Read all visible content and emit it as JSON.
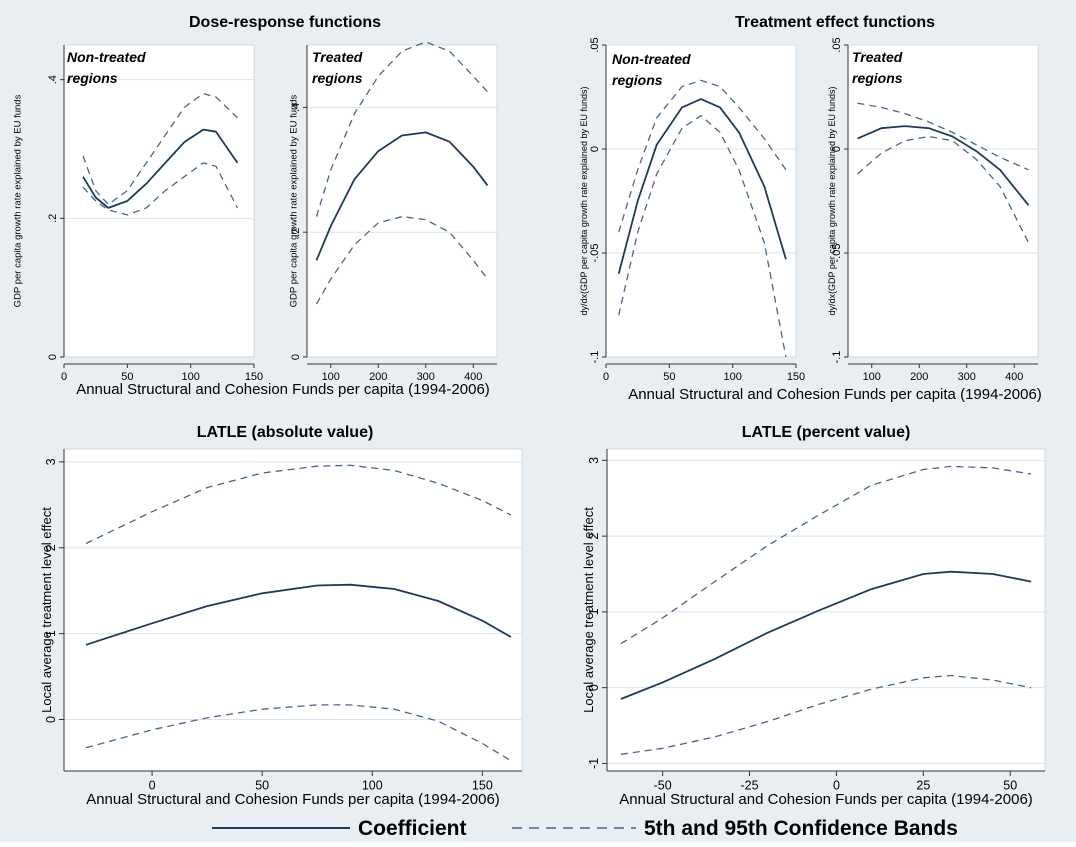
{
  "figure": {
    "legend": {
      "coefficient": "Coefficient",
      "bands": "5th and 95th Confidence Bands"
    },
    "colors": {
      "background": "#e9eef3",
      "plot": "#ffffff",
      "line": "#1e3a5f",
      "dash": "#48668c",
      "grid": "#dde2e8"
    }
  },
  "chart_data": [
    {
      "type": "line",
      "group_title": "Dose-response functions",
      "panel_label": "Non-treated regions",
      "ylabel": "GDP per capita growth rate explained by EU funds",
      "xlabel": "",
      "xlim": [
        0,
        150
      ],
      "ylim": [
        0,
        0.45
      ],
      "xticks": [
        "0",
        "50",
        "100",
        "150"
      ],
      "xtick_values": [
        0,
        50,
        100,
        150
      ],
      "yticks": [
        "0",
        ".2",
        ".4"
      ],
      "ytick_values": [
        0,
        0.2,
        0.4
      ],
      "gridlines": [
        0.2,
        0.4
      ],
      "series": [
        {
          "role": "coefficient",
          "x": [
            15,
            25,
            35,
            50,
            65,
            80,
            95,
            110,
            120,
            137
          ],
          "y": [
            0.26,
            0.23,
            0.215,
            0.225,
            0.25,
            0.28,
            0.31,
            0.328,
            0.325,
            0.28
          ]
        },
        {
          "role": "upper",
          "x": [
            15,
            25,
            35,
            50,
            65,
            80,
            95,
            110,
            120,
            137
          ],
          "y": [
            0.29,
            0.24,
            0.22,
            0.24,
            0.28,
            0.32,
            0.36,
            0.38,
            0.375,
            0.345
          ]
        },
        {
          "role": "lower",
          "x": [
            15,
            25,
            35,
            50,
            65,
            80,
            95,
            110,
            120,
            137
          ],
          "y": [
            0.245,
            0.225,
            0.212,
            0.205,
            0.215,
            0.24,
            0.26,
            0.28,
            0.275,
            0.215
          ]
        }
      ]
    },
    {
      "type": "line",
      "group_title": "",
      "panel_label": "Treated regions",
      "ylabel": "GDP per capita growth rate explained by EU funds",
      "xlabel": "",
      "xlim": [
        50,
        450
      ],
      "ylim": [
        0,
        0.5
      ],
      "xticks": [
        "100",
        "200",
        "300",
        "400"
      ],
      "xtick_values": [
        100,
        200,
        300,
        400
      ],
      "yticks": [
        "0",
        ".2",
        ".4"
      ],
      "ytick_values": [
        0,
        0.2,
        0.4
      ],
      "gridlines": [
        0.2,
        0.4
      ],
      "series": [
        {
          "role": "coefficient",
          "x": [
            70,
            100,
            150,
            200,
            250,
            300,
            350,
            400,
            430
          ],
          "y": [
            0.155,
            0.21,
            0.285,
            0.33,
            0.355,
            0.36,
            0.345,
            0.305,
            0.275
          ]
        },
        {
          "role": "upper",
          "x": [
            70,
            100,
            150,
            200,
            250,
            300,
            350,
            400,
            430
          ],
          "y": [
            0.225,
            0.3,
            0.39,
            0.45,
            0.49,
            0.505,
            0.49,
            0.45,
            0.425
          ]
        },
        {
          "role": "lower",
          "x": [
            70,
            100,
            150,
            200,
            250,
            300,
            350,
            400,
            430
          ],
          "y": [
            0.085,
            0.125,
            0.18,
            0.215,
            0.225,
            0.22,
            0.2,
            0.155,
            0.125
          ]
        }
      ]
    },
    {
      "type": "line",
      "group_title": "Treatment effect functions",
      "panel_label": "Non-treated regions",
      "ylabel": "dy/dx(GDP per capita growth rate explained by EU funds)",
      "xlabel": "",
      "xlim": [
        0,
        150
      ],
      "ylim": [
        -0.1,
        0.05
      ],
      "xticks": [
        "0",
        "50",
        "100",
        "150"
      ],
      "xtick_values": [
        0,
        50,
        100,
        150
      ],
      "yticks": [
        "-.1",
        "-.05",
        "0",
        ".05"
      ],
      "ytick_values": [
        -0.1,
        -0.05,
        0,
        0.05
      ],
      "gridlines": [
        -0.05,
        0,
        0.05
      ],
      "series": [
        {
          "role": "coefficient",
          "x": [
            10,
            25,
            40,
            60,
            75,
            90,
            105,
            125,
            142
          ],
          "y": [
            -0.06,
            -0.025,
            0.002,
            0.02,
            0.024,
            0.02,
            0.008,
            -0.018,
            -0.053
          ]
        },
        {
          "role": "upper",
          "x": [
            10,
            25,
            40,
            60,
            75,
            90,
            105,
            125,
            142
          ],
          "y": [
            -0.04,
            -0.01,
            0.015,
            0.03,
            0.033,
            0.03,
            0.02,
            0.005,
            -0.01
          ]
        },
        {
          "role": "lower",
          "x": [
            10,
            25,
            40,
            60,
            75,
            90,
            105,
            125,
            142
          ],
          "y": [
            -0.08,
            -0.04,
            -0.012,
            0.01,
            0.016,
            0.008,
            -0.01,
            -0.045,
            -0.1
          ]
        }
      ]
    },
    {
      "type": "line",
      "group_title": "",
      "panel_label": "Treated regions",
      "ylabel": "dy/dx(GDP per capita growth rate explained by EU funds)",
      "xlabel": "",
      "xlim": [
        50,
        450
      ],
      "ylim": [
        -0.1,
        0.05
      ],
      "xticks": [
        "100",
        "200",
        "300",
        "400"
      ],
      "xtick_values": [
        100,
        200,
        300,
        400
      ],
      "yticks": [
        "-.1",
        "-.05",
        "0",
        ".05"
      ],
      "ytick_values": [
        -0.1,
        -0.05,
        0,
        0.05
      ],
      "gridlines": [
        -0.05,
        0,
        0.05
      ],
      "series": [
        {
          "role": "coefficient",
          "x": [
            70,
            120,
            170,
            220,
            270,
            320,
            370,
            430
          ],
          "y": [
            0.005,
            0.01,
            0.011,
            0.01,
            0.006,
            -0.001,
            -0.01,
            -0.027
          ]
        },
        {
          "role": "upper",
          "x": [
            70,
            120,
            170,
            220,
            270,
            320,
            370,
            430
          ],
          "y": [
            0.022,
            0.02,
            0.017,
            0.013,
            0.008,
            0.002,
            -0.004,
            -0.01
          ]
        },
        {
          "role": "lower",
          "x": [
            70,
            120,
            170,
            220,
            270,
            320,
            370,
            430
          ],
          "y": [
            -0.012,
            -0.002,
            0.004,
            0.006,
            0.004,
            -0.005,
            -0.018,
            -0.045
          ]
        }
      ]
    },
    {
      "type": "line",
      "group_title": "",
      "panel_label": "",
      "ylabel": "",
      "xlabel": "Annual Structural and Cohesion Funds per capita (1994-2006)",
      "xlim": [
        -30,
        180
      ],
      "ylim": [
        0,
        1
      ],
      "xticks": [],
      "xtick_values": [],
      "yticks": [],
      "ytick_values": [],
      "gridlines": [],
      "series": []
    },
    {
      "type": "line",
      "group_title": "LATLE (absolute value)",
      "panel_label": "",
      "ylabel": "Local average treatment level effect",
      "xlabel": "Annual Structural and Cohesion Funds per capita (1994-2006)",
      "xlim": [
        -40,
        168
      ],
      "ylim": [
        -0.6,
        3.15
      ],
      "xticks": [
        "0",
        "50",
        "100",
        "150"
      ],
      "xtick_values": [
        0,
        50,
        100,
        150
      ],
      "yticks": [
        "0",
        "1",
        "2",
        "3"
      ],
      "ytick_values": [
        0,
        1,
        2,
        3
      ],
      "gridlines": [
        0,
        1,
        2,
        3
      ],
      "series": [
        {
          "role": "coefficient",
          "x": [
            -30,
            0,
            25,
            50,
            75,
            90,
            110,
            130,
            150,
            163
          ],
          "y": [
            0.87,
            1.12,
            1.32,
            1.47,
            1.56,
            1.57,
            1.52,
            1.38,
            1.15,
            0.96
          ]
        },
        {
          "role": "upper",
          "x": [
            -30,
            0,
            25,
            50,
            75,
            90,
            110,
            130,
            150,
            163
          ],
          "y": [
            2.05,
            2.42,
            2.7,
            2.87,
            2.95,
            2.96,
            2.9,
            2.75,
            2.55,
            2.38
          ]
        },
        {
          "role": "lower",
          "x": [
            -30,
            0,
            25,
            50,
            75,
            90,
            110,
            130,
            150,
            163
          ],
          "y": [
            -0.33,
            -0.12,
            0.02,
            0.12,
            0.17,
            0.17,
            0.12,
            -0.02,
            -0.28,
            -0.48
          ]
        }
      ]
    },
    {
      "type": "line",
      "group_title": "LATLE (percent value)",
      "panel_label": "",
      "ylabel": "Local average treatment level effect",
      "xlabel": "Annual Structural and Cohesion Funds per capita (1994-2006)",
      "xlim": [
        -66,
        60
      ],
      "ylim": [
        -1.1,
        3.15
      ],
      "xticks": [
        "-50",
        "-25",
        "0",
        "25",
        "50"
      ],
      "xtick_values": [
        -50,
        -25,
        0,
        25,
        50
      ],
      "yticks": [
        "-1",
        "0",
        "1",
        "2",
        "3"
      ],
      "ytick_values": [
        -1,
        0,
        1,
        2,
        3
      ],
      "gridlines": [
        -1,
        0,
        1,
        2,
        3
      ],
      "series": [
        {
          "role": "coefficient",
          "x": [
            -62,
            -50,
            -35,
            -20,
            -5,
            10,
            25,
            33,
            45,
            56
          ],
          "y": [
            -0.15,
            0.07,
            0.38,
            0.72,
            1.02,
            1.3,
            1.5,
            1.53,
            1.5,
            1.4
          ]
        },
        {
          "role": "upper",
          "x": [
            -62,
            -50,
            -35,
            -20,
            -5,
            10,
            25,
            33,
            45,
            56
          ],
          "y": [
            0.58,
            0.92,
            1.4,
            1.87,
            2.28,
            2.67,
            2.88,
            2.92,
            2.9,
            2.82
          ]
        },
        {
          "role": "lower",
          "x": [
            -62,
            -50,
            -35,
            -20,
            -5,
            10,
            25,
            33,
            45,
            56
          ],
          "y": [
            -0.88,
            -0.8,
            -0.65,
            -0.45,
            -0.22,
            -0.02,
            0.13,
            0.16,
            0.1,
            0.0
          ]
        }
      ]
    }
  ]
}
